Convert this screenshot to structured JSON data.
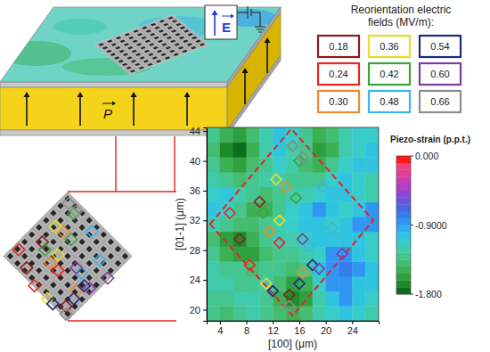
{
  "chart_data": {
    "type": "heatmap",
    "x_label": "[100] (μm)",
    "y_label": "[01-1] (μm)",
    "xlim": [
      2,
      28
    ],
    "xticks": [
      4,
      8,
      12,
      16,
      20,
      24
    ],
    "ylim": [
      18.5,
      44.5
    ],
    "yticks": [
      20,
      24,
      28,
      32,
      36,
      40,
      44
    ],
    "x": [
      3,
      5,
      7,
      9,
      11,
      13,
      15,
      17,
      19,
      21,
      23,
      25,
      27
    ],
    "y": [
      19.5,
      21.5,
      23.5,
      25.5,
      27.5,
      29.5,
      31.5,
      33.5,
      35.5,
      37.5,
      39.5,
      41.5,
      43.5
    ],
    "cells": [
      [
        -1.3,
        -1.4,
        -1.3,
        -1.2,
        -1.3,
        -1.4,
        -1.5,
        -1.4,
        -1.2,
        -1.1,
        -1.0,
        -1.1,
        -1.2
      ],
      [
        -1.3,
        -1.3,
        -1.2,
        -1.2,
        -1.3,
        -1.5,
        -1.7,
        -1.6,
        -1.2,
        -1.0,
        -0.9,
        -1.0,
        -1.1
      ],
      [
        -1.2,
        -1.2,
        -1.3,
        -1.3,
        -1.2,
        -1.4,
        -1.6,
        -1.5,
        -1.1,
        -0.9,
        -0.9,
        -1.0,
        -1.0
      ],
      [
        -1.2,
        -1.3,
        -1.3,
        -1.4,
        -1.3,
        -1.3,
        -1.4,
        -1.3,
        -1.0,
        -0.9,
        -0.8,
        -0.9,
        -1.0
      ],
      [
        -1.3,
        -1.5,
        -1.6,
        -1.6,
        -1.4,
        -1.3,
        -1.3,
        -1.2,
        -1.1,
        -0.9,
        -0.9,
        -1.0,
        -1.1
      ],
      [
        -1.4,
        -1.6,
        -1.7,
        -1.5,
        -1.3,
        -1.2,
        -1.2,
        -1.1,
        -1.0,
        -1.0,
        -1.0,
        -1.0,
        -1.1
      ],
      [
        -1.2,
        -1.3,
        -1.4,
        -1.4,
        -1.3,
        -1.2,
        -1.1,
        -1.0,
        -1.0,
        -1.1,
        -1.0,
        -0.9,
        -0.9
      ],
      [
        -1.0,
        -1.1,
        -1.3,
        -1.5,
        -1.5,
        -1.3,
        -1.1,
        -1.0,
        -0.9,
        -1.0,
        -1.1,
        -1.0,
        -0.9
      ],
      [
        -1.1,
        -1.0,
        -1.2,
        -1.3,
        -1.4,
        -1.3,
        -1.2,
        -1.2,
        -1.1,
        -1.0,
        -1.0,
        -1.1,
        -1.2
      ],
      [
        -1.2,
        -1.3,
        -1.4,
        -1.3,
        -1.2,
        -1.2,
        -1.3,
        -1.3,
        -1.3,
        -1.1,
        -1.0,
        -1.1,
        -1.2
      ],
      [
        -1.3,
        -1.5,
        -1.6,
        -1.4,
        -1.3,
        -1.1,
        -1.2,
        -1.4,
        -1.5,
        -1.3,
        -1.1,
        -1.0,
        -1.0
      ],
      [
        -1.4,
        -1.7,
        -1.8,
        -1.5,
        -1.2,
        -1.0,
        -1.2,
        -1.3,
        -1.6,
        -1.5,
        -1.2,
        -1.1,
        -1.0
      ],
      [
        -1.3,
        -1.5,
        -1.6,
        -1.4,
        -1.2,
        -1.0,
        -1.1,
        -1.3,
        -1.5,
        -1.4,
        -1.2,
        -1.1,
        -1.1
      ]
    ],
    "colorbar": {
      "title": "Piezo-strain (p.p.t.)",
      "range": [
        -1.8,
        0
      ],
      "ticks": [
        {
          "value": 0,
          "label": "0.000"
        },
        {
          "value": -0.9,
          "label": "-0.9000"
        },
        {
          "value": -1.8,
          "label": "-1.800"
        }
      ],
      "colors": [
        "#0b6e1e",
        "#1f8a2a",
        "#2fa040",
        "#3cb055",
        "#45bd70",
        "#45c590",
        "#40cbad",
        "#38cdc8",
        "#30c4e0",
        "#2eaef0",
        "#3096f2",
        "#357ced",
        "#4a66e6",
        "#6a55dc",
        "#8c48d2",
        "#ac42c6",
        "#ca40b4",
        "#e23f98",
        "#f2407a",
        "#ff1a1a"
      ]
    },
    "legend_title": [
      "Reorientation electric",
      "fields (MV/m):"
    ],
    "marker": "diamond",
    "series": [
      {
        "name": "0.18",
        "color": "#8b1c1c",
        "x": [
          7.0,
          10.0,
          14.5
        ],
        "y": [
          29.5,
          34.5,
          22.0
        ]
      },
      {
        "name": "0.24",
        "color": "#e82525",
        "x": [
          5.5,
          8.5,
          13.0
        ],
        "y": [
          33.0,
          26.0,
          29.0
        ]
      },
      {
        "name": "0.30",
        "color": "#f08a2c",
        "x": [
          11.5,
          14.0,
          16.5
        ],
        "y": [
          30.5,
          36.5,
          25.0
        ]
      },
      {
        "name": "0.36",
        "color": "#e6e020",
        "x": [
          12.5,
          13.0,
          11.0
        ],
        "y": [
          37.5,
          32.0,
          23.5
        ]
      },
      {
        "name": "0.42",
        "color": "#3aa43a",
        "x": [
          10.5,
          16.0,
          15.5
        ],
        "y": [
          33.0,
          40.0,
          35.0
        ]
      },
      {
        "name": "0.48",
        "color": "#3bb4ea",
        "x": [
          17.5,
          19.5,
          21.0
        ],
        "y": [
          28.5,
          36.5,
          31.0
        ]
      },
      {
        "name": "0.54",
        "color": "#1c2a80",
        "x": [
          12.0,
          16.0,
          18.0
        ],
        "y": [
          22.5,
          23.5,
          26.0
        ]
      },
      {
        "name": "0.60",
        "color": "#7a3fa0",
        "x": [
          16.5,
          19.0,
          22.5
        ],
        "y": [
          29.5,
          25.5,
          27.5
        ]
      },
      {
        "name": "0.66",
        "color": "#8c8c8c",
        "x": [
          15.0,
          16.5,
          14.5
        ],
        "y": [
          42.0,
          40.5,
          20.5
        ]
      }
    ],
    "region": {
      "x": [
        2.5,
        14.8,
        27.2,
        15.0
      ],
      "y": [
        31.5,
        44.3,
        32.0,
        19.2
      ],
      "line_style": "dashed",
      "color": "#e8202a"
    },
    "annotations": {
      "polarization": "P",
      "field": "E"
    }
  }
}
